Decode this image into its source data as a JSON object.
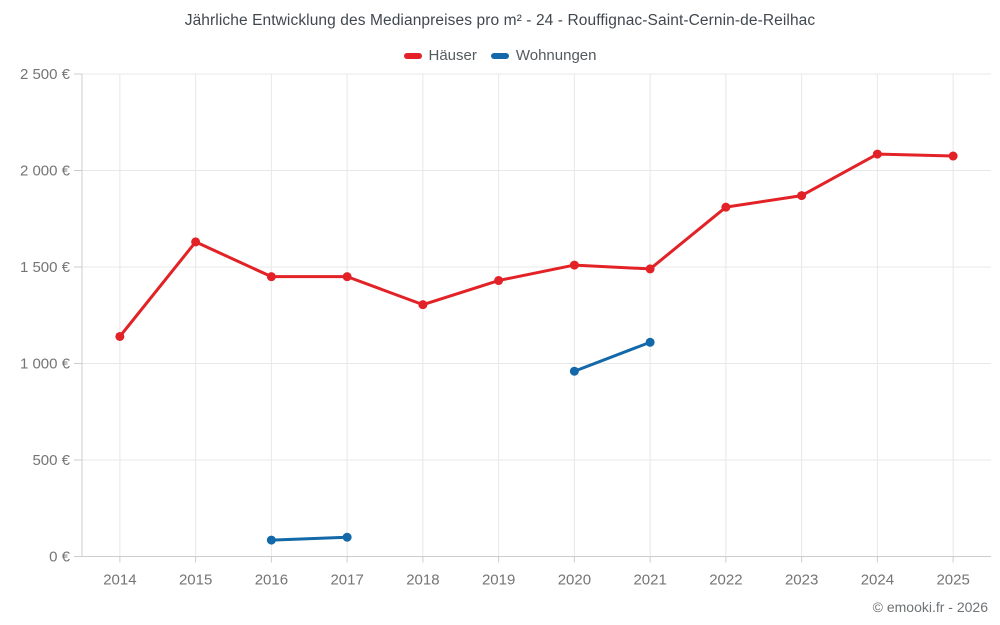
{
  "chart_data": {
    "type": "line",
    "title": "Jährliche Entwicklung des Medianpreises pro m² - 24 - Rouffignac-Saint-Cernin-de-Reilhac",
    "categories": [
      "2014",
      "2015",
      "2016",
      "2017",
      "2018",
      "2019",
      "2020",
      "2021",
      "2022",
      "2023",
      "2024",
      "2025"
    ],
    "series": [
      {
        "name": "Häuser",
        "color": "#e22226",
        "values": [
          1140,
          1630,
          1450,
          1450,
          1305,
          1430,
          1510,
          1490,
          1810,
          1870,
          2085,
          2075
        ]
      },
      {
        "name": "Wohnungen",
        "color": "#1268a8",
        "values": [
          null,
          null,
          85,
          100,
          null,
          null,
          960,
          1110,
          null,
          null,
          null,
          null
        ]
      }
    ],
    "ylabel": "",
    "xlabel": "",
    "ylim": [
      0,
      2500
    ],
    "y_tick_values": [
      0,
      500,
      1000,
      1500,
      2000,
      2500
    ],
    "y_tick_labels": [
      "0 €",
      "500 €",
      "1 000 €",
      "1 500 €",
      "2 000 €",
      "2 500 €"
    ],
    "grid": true,
    "legend_position": "top"
  },
  "footer": {
    "copyright": "© emooki.fr - 2026"
  },
  "style_colors": {
    "grid": "#e8e8e8",
    "axis": "#cccccc",
    "tick_label": "#757575"
  }
}
